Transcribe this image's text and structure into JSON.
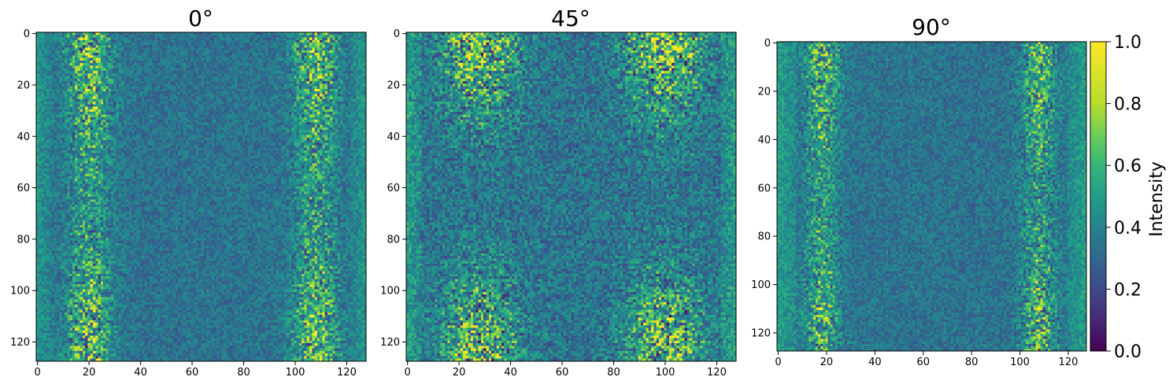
{
  "chart_data": [
    {
      "type": "heatmap",
      "title": "0°",
      "size": 128,
      "xticks": [
        0,
        20,
        40,
        60,
        80,
        100,
        120
      ],
      "yticks": [
        0,
        20,
        40,
        60,
        80,
        100,
        120
      ],
      "xlim": [
        0,
        127
      ],
      "ylim": [
        127,
        0
      ],
      "pattern": "high intensity bands near columns ~15-25 and ~100-115, strongest near top and bottom rows; center ~0.4",
      "value_range": [
        0,
        1
      ]
    },
    {
      "type": "heatmap",
      "title": "45°",
      "size": 128,
      "xticks": [
        0,
        20,
        40,
        60,
        80,
        100,
        120
      ],
      "yticks": [
        0,
        20,
        40,
        60,
        80,
        100,
        120
      ],
      "xlim": [
        0,
        127
      ],
      "ylim": [
        127,
        0
      ],
      "pattern": "high intensity lobes near top-left/top-right and bottom-left/bottom-right corners with diagonal texture; center ~0.35",
      "value_range": [
        0,
        1
      ]
    },
    {
      "type": "heatmap",
      "title": "90°",
      "size": 128,
      "xticks": [
        0,
        20,
        40,
        60,
        80,
        100,
        120
      ],
      "yticks": [
        0,
        20,
        40,
        60,
        80,
        100,
        120
      ],
      "xlim": [
        0,
        127
      ],
      "ylim": [
        127,
        0
      ],
      "pattern": "high intensity vertical bands near columns ~15-20 and ~105-112, weaker overall; center ~0.4",
      "value_range": [
        0,
        1
      ]
    }
  ],
  "colorbar": {
    "label": "Intensity",
    "colormap": "viridis",
    "ticks": [
      "0.0",
      "0.2",
      "0.4",
      "0.6",
      "0.8",
      "1.0"
    ],
    "range": [
      0,
      1
    ]
  }
}
